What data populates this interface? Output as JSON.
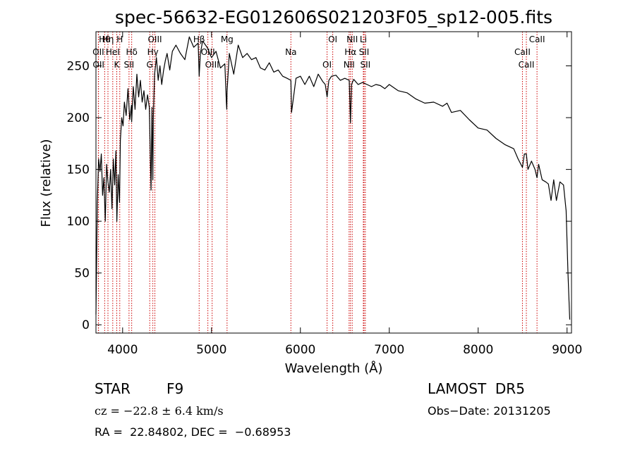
{
  "chart_data": {
    "type": "line",
    "title": "spec-56632-EG012606S021203F05_sp12-005.fits",
    "xlabel": "Wavelength (Å)",
    "ylabel": "Flux (relative)",
    "xlim": [
      3700,
      9050
    ],
    "ylim": [
      -8,
      283
    ],
    "xticks": [
      4000,
      5000,
      6000,
      7000,
      8000,
      9000
    ],
    "yticks": [
      0,
      50,
      100,
      150,
      200,
      250
    ],
    "grid": false,
    "series": [
      {
        "color": "#000000",
        "x": [
          3700,
          3715,
          3730,
          3745,
          3760,
          3775,
          3790,
          3805,
          3820,
          3835,
          3850,
          3865,
          3880,
          3895,
          3910,
          3925,
          3935,
          3950,
          3965,
          3975,
          3990,
          4005,
          4020,
          4040,
          4060,
          4080,
          4100,
          4102,
          4120,
          4140,
          4160,
          4180,
          4200,
          4220,
          4240,
          4260,
          4280,
          4300,
          4320,
          4330,
          4340,
          4345,
          4360,
          4380,
          4400,
          4420,
          4440,
          4460,
          4480,
          4500,
          4530,
          4560,
          4600,
          4650,
          4700,
          4750,
          4800,
          4850,
          4861,
          4875,
          4900,
          4950,
          5000,
          5050,
          5100,
          5150,
          5167,
          5172,
          5175,
          5200,
          5250,
          5300,
          5350,
          5400,
          5450,
          5500,
          5550,
          5600,
          5650,
          5700,
          5750,
          5800,
          5850,
          5893,
          5900,
          5950,
          6000,
          6050,
          6100,
          6150,
          6200,
          6250,
          6280,
          6300,
          6320,
          6350,
          6400,
          6450,
          6500,
          6550,
          6563,
          6575,
          6600,
          6650,
          6700,
          6750,
          6800,
          6850,
          6900,
          6950,
          7000,
          7100,
          7200,
          7300,
          7400,
          7500,
          7600,
          7650,
          7700,
          7800,
          7900,
          8000,
          8100,
          8200,
          8300,
          8400,
          8450,
          8498,
          8520,
          8542,
          8560,
          8600,
          8640,
          8662,
          8680,
          8720,
          8760,
          8790,
          8820,
          8850,
          8880,
          8920,
          8960,
          8990,
          9010,
          9030
        ],
        "y": [
          10,
          118,
          160,
          148,
          165,
          125,
          142,
          100,
          155,
          138,
          128,
          150,
          112,
          160,
          135,
          168,
          100,
          145,
          118,
          178,
          200,
          192,
          215,
          202,
          228,
          198,
          212,
          196,
          230,
          208,
          242,
          220,
          236,
          215,
          226,
          208,
          222,
          210,
          130,
          210,
          140,
          200,
          242,
          258,
          236,
          250,
          232,
          245,
          255,
          262,
          246,
          264,
          270,
          262,
          256,
          278,
          268,
          272,
          240,
          262,
          274,
          268,
          258,
          264,
          248,
          252,
          215,
          208,
          225,
          262,
          242,
          270,
          258,
          262,
          256,
          258,
          248,
          246,
          253,
          244,
          246,
          240,
          238,
          236,
          205,
          238,
          240,
          232,
          240,
          230,
          242,
          235,
          232,
          220,
          236,
          240,
          241,
          236,
          238,
          236,
          195,
          232,
          237,
          232,
          234,
          232,
          230,
          232,
          231,
          228,
          232,
          226,
          224,
          218,
          214,
          215,
          211,
          214,
          205,
          207,
          198,
          190,
          188,
          180,
          174,
          170,
          160,
          152,
          165,
          165,
          150,
          158,
          150,
          142,
          155,
          140,
          138,
          136,
          120,
          140,
          120,
          138,
          135,
          110,
          50,
          5
        ]
      }
    ],
    "lines": [
      {
        "name": "Hθ",
        "x": 3798
      },
      {
        "name": "OII",
        "x": 3727
      },
      {
        "name": "OII",
        "x": 3729
      },
      {
        "name": "Hη",
        "x": 3835
      },
      {
        "name": "HeI",
        "x": 3889
      },
      {
        "name": "K",
        "x": 3934
      },
      {
        "name": "H",
        "x": 3968
      },
      {
        "name": "Hδ",
        "x": 4102
      },
      {
        "name": "SII",
        "x": 4072
      },
      {
        "name": "OIII",
        "x": 4363
      },
      {
        "name": "Hγ",
        "x": 4340
      },
      {
        "name": "G",
        "x": 4305
      },
      {
        "name": "Hβ",
        "x": 4861
      },
      {
        "name": "OIII",
        "x": 4959
      },
      {
        "name": "OIII",
        "x": 5007
      },
      {
        "name": "Mg",
        "x": 5175
      },
      {
        "name": "Na",
        "x": 5893
      },
      {
        "name": "OI",
        "x": 6300
      },
      {
        "name": "OI",
        "x": 6364
      },
      {
        "name": "Hα",
        "x": 6563
      },
      {
        "name": "NII",
        "x": 6548
      },
      {
        "name": "NII",
        "x": 6583
      },
      {
        "name": "SII",
        "x": 6716
      },
      {
        "name": "SII",
        "x": 6731
      },
      {
        "name": "Li",
        "x": 6708
      },
      {
        "name": "CaII",
        "x": 8498
      },
      {
        "name": "CaII",
        "x": 8542
      },
      {
        "name": "CaII",
        "x": 8662
      }
    ],
    "line_color": "#cc0000"
  },
  "info": {
    "class_label": "STAR",
    "subclass": "F9",
    "survey": "LAMOST  DR5",
    "cz": "cz = −22.8 ± 6.4 km/s",
    "obs_date": "Obs−Date: 20131205",
    "coords": "RA =  22.84802, DEC =  −0.68953"
  }
}
